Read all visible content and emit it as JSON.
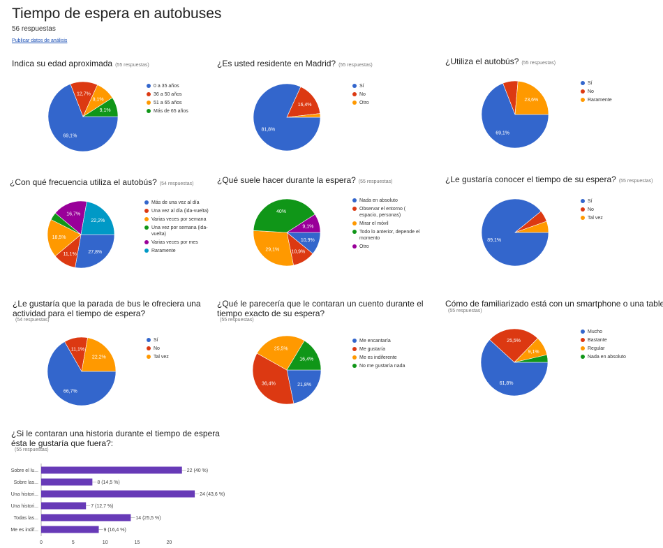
{
  "page": {
    "title": "Tiempo de espera en autobuses",
    "subtitle": "56 respuestas",
    "publish_link": "Publicar datos de análisis"
  },
  "colors": {
    "blue": "#3366cc",
    "red": "#dc3912",
    "orange": "#ff9900",
    "green": "#109618",
    "purple": "#990099",
    "teal": "#0099c6",
    "bar": "#673ab7"
  },
  "chart_data": [
    {
      "id": "edad",
      "type": "pie",
      "title": "Indica su edad aproximada",
      "count": "(55 respuestas)",
      "categories": [
        "0 a 35 años",
        "36 a 50 años",
        "51 a 65 años",
        "Más de 65 años"
      ],
      "values": [
        69.1,
        12.7,
        9.1,
        9.1
      ],
      "labels": [
        "69,1%",
        "12,7%",
        "9,1%",
        "9,1%"
      ],
      "colors": [
        "#3366cc",
        "#dc3912",
        "#ff9900",
        "#109618"
      ]
    },
    {
      "id": "residente",
      "type": "pie",
      "title": "¿Es usted residente en Madrid?",
      "count": "(55 respuestas)",
      "categories": [
        "Sí",
        "No",
        "Otro"
      ],
      "values": [
        81.8,
        16.4,
        1.8
      ],
      "labels": [
        "81,8%",
        "16,4%",
        ""
      ],
      "colors": [
        "#3366cc",
        "#dc3912",
        "#ff9900"
      ]
    },
    {
      "id": "utiliza",
      "type": "pie",
      "title": "¿Utiliza el autobús?",
      "count": "(55 respuestas)",
      "categories": [
        "Sí",
        "No",
        "Raramente"
      ],
      "values": [
        69.1,
        7.3,
        23.6
      ],
      "labels": [
        "69,1%",
        "",
        "23,6%"
      ],
      "colors": [
        "#3366cc",
        "#dc3912",
        "#ff9900"
      ]
    },
    {
      "id": "frecuencia",
      "type": "pie",
      "title": "¿Con qué frecuencia utiliza el autobús?",
      "count": "(54 respuestas)",
      "categories": [
        "Más de una vez al día",
        "Una vez al día (ida-vuelta)",
        "Varias veces por semana",
        "Una vez por semana (ida-vuelta)",
        "Varias veces por mes",
        "Raramente"
      ],
      "values": [
        27.8,
        11.1,
        18.5,
        3.7,
        16.7,
        22.2
      ],
      "labels": [
        "27,8%",
        "11,1%",
        "18,5%",
        "",
        "16,7%",
        "22,2%"
      ],
      "colors": [
        "#3366cc",
        "#dc3912",
        "#ff9900",
        "#109618",
        "#990099",
        "#0099c6"
      ]
    },
    {
      "id": "hacer",
      "type": "pie",
      "title": "¿Qué suele hacer durante la espera?",
      "count": "(55 respuestas)",
      "categories": [
        "Nada en absoluto",
        "Observar el entorno ( espacio, personas)",
        "Mirar el móvil",
        "Todo lo anterior, depende el momento",
        "Otro"
      ],
      "values": [
        10.9,
        10.9,
        29.1,
        40,
        9.1
      ],
      "labels": [
        "10,9%",
        "10,9%",
        "29,1%",
        "40%",
        "9,1%"
      ],
      "colors": [
        "#3366cc",
        "#dc3912",
        "#ff9900",
        "#109618",
        "#990099"
      ]
    },
    {
      "id": "conocer",
      "type": "pie",
      "title": "¿Le gustaría conocer el tiempo de su espera?",
      "count": "(55 respuestas)",
      "categories": [
        "Sí",
        "No",
        "Tal vez"
      ],
      "values": [
        89.1,
        5.5,
        5.4
      ],
      "labels": [
        "89,1%",
        "",
        ""
      ],
      "colors": [
        "#3366cc",
        "#dc3912",
        "#ff9900"
      ]
    },
    {
      "id": "actividad",
      "type": "pie",
      "title": "¿Le gustaría que la parada de bus le ofreciera una actividad para el tiempo de espera?",
      "count": "(54 respuestas)",
      "categories": [
        "Sí",
        "No",
        "Tal vez"
      ],
      "values": [
        66.7,
        11.1,
        22.2
      ],
      "labels": [
        "66,7%",
        "11,1%",
        "22,2%"
      ],
      "colors": [
        "#3366cc",
        "#dc3912",
        "#ff9900"
      ]
    },
    {
      "id": "cuento",
      "type": "pie",
      "title": "¿Qué le parecería que le contaran un cuento durante el tiempo exacto de su espera?",
      "count": "(55 respuestas)",
      "categories": [
        "Me encantaría",
        "Me gustaría",
        "Me es indiferente",
        "No me gustaría nada"
      ],
      "values": [
        21.8,
        36.4,
        25.5,
        16.4
      ],
      "labels": [
        "21,8%",
        "36,4%",
        "25,5%",
        "16,4%"
      ],
      "colors": [
        "#3366cc",
        "#dc3912",
        "#ff9900",
        "#109618"
      ]
    },
    {
      "id": "smartphone",
      "type": "pie",
      "title": "Cómo de familiarizado está con un smartphone o una tableta?",
      "count": "(55 respuestas)",
      "categories": [
        "Mucho",
        "Bastante",
        "Regular",
        "Nada en absoluto"
      ],
      "values": [
        61.8,
        25.5,
        9.1,
        3.6
      ],
      "labels": [
        "61,8%",
        "25,5%",
        "9,1%",
        ""
      ],
      "colors": [
        "#3366cc",
        "#dc3912",
        "#ff9900",
        "#109618"
      ]
    },
    {
      "id": "historia",
      "type": "bar",
      "orientation": "horizontal",
      "title": "¿Si le contaran una historia durante el tiempo de espera ésta le gustaría que fuera?:",
      "count": "(55 respuestas)",
      "categories": [
        "Sobre el lu...",
        "Sobre las...",
        "Una histori...",
        "Una histori...",
        "Todas las...",
        "Me es indif..."
      ],
      "values": [
        22,
        8,
        24,
        7,
        14,
        9
      ],
      "labels": [
        "22 (40 %)",
        "8 (14,5 %)",
        "24 (43,6 %)",
        "7 (12,7 %)",
        "14 (25,5 %)",
        "9 (16,4 %)"
      ],
      "ticks": [
        "0",
        "5",
        "10",
        "15",
        "20"
      ],
      "xlim": [
        0,
        25
      ],
      "color": "#673ab7"
    }
  ]
}
